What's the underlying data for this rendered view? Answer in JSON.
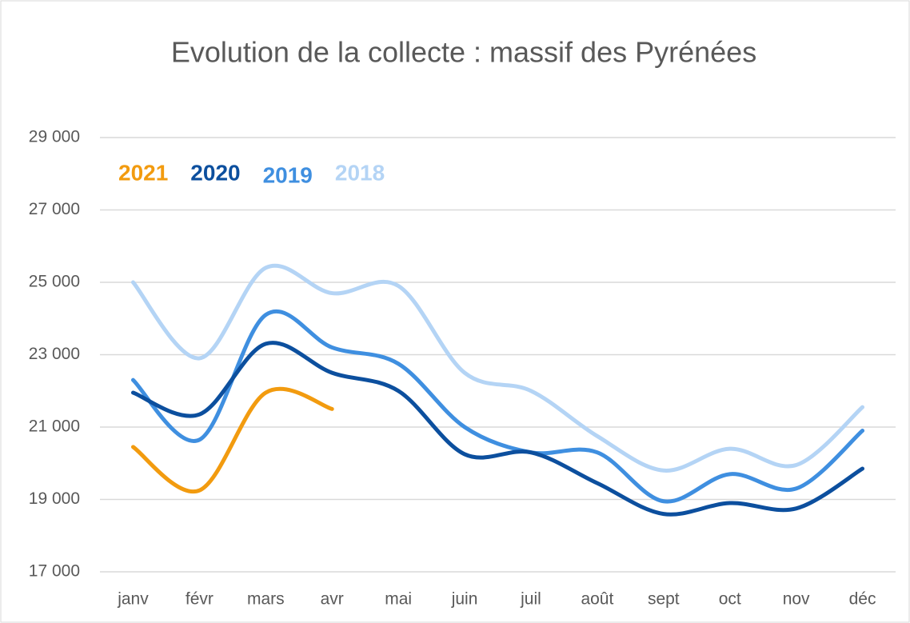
{
  "chart_data": {
    "type": "line",
    "title": "Evolution de la collecte : massif des Pyrénées",
    "categories": [
      "janv",
      "févr",
      "mars",
      "avr",
      "mai",
      "juin",
      "juil",
      "août",
      "sept",
      "oct",
      "nov",
      "déc"
    ],
    "series": [
      {
        "name": "2021",
        "color": "#f29b0f",
        "values": [
          20450,
          19250,
          21950,
          21500,
          null,
          null,
          null,
          null,
          null,
          null,
          null,
          null
        ]
      },
      {
        "name": "2020",
        "color": "#0c4f9e",
        "values": [
          21950,
          21350,
          23300,
          22500,
          22000,
          20250,
          20300,
          19450,
          18600,
          18900,
          18750,
          19850
        ]
      },
      {
        "name": "2019",
        "color": "#3f8fe0",
        "values": [
          22300,
          20650,
          24100,
          23200,
          22750,
          21000,
          20300,
          20300,
          18950,
          19700,
          19300,
          20900
        ]
      },
      {
        "name": "2018",
        "color": "#b4d4f5",
        "values": [
          25000,
          22900,
          25400,
          24700,
          24900,
          22500,
          22000,
          20750,
          19800,
          20400,
          19950,
          21550
        ]
      }
    ],
    "ylim": [
      17000,
      29000
    ],
    "yticks": [
      {
        "value": 17000,
        "label": "17 000"
      },
      {
        "value": 19000,
        "label": "19 000"
      },
      {
        "value": 21000,
        "label": "21 000"
      },
      {
        "value": 23000,
        "label": "23 000"
      },
      {
        "value": 25000,
        "label": "25 000"
      },
      {
        "value": 27000,
        "label": "27 000"
      },
      {
        "value": 29000,
        "label": "29 000"
      }
    ],
    "grid": true,
    "legend": "top-left"
  }
}
